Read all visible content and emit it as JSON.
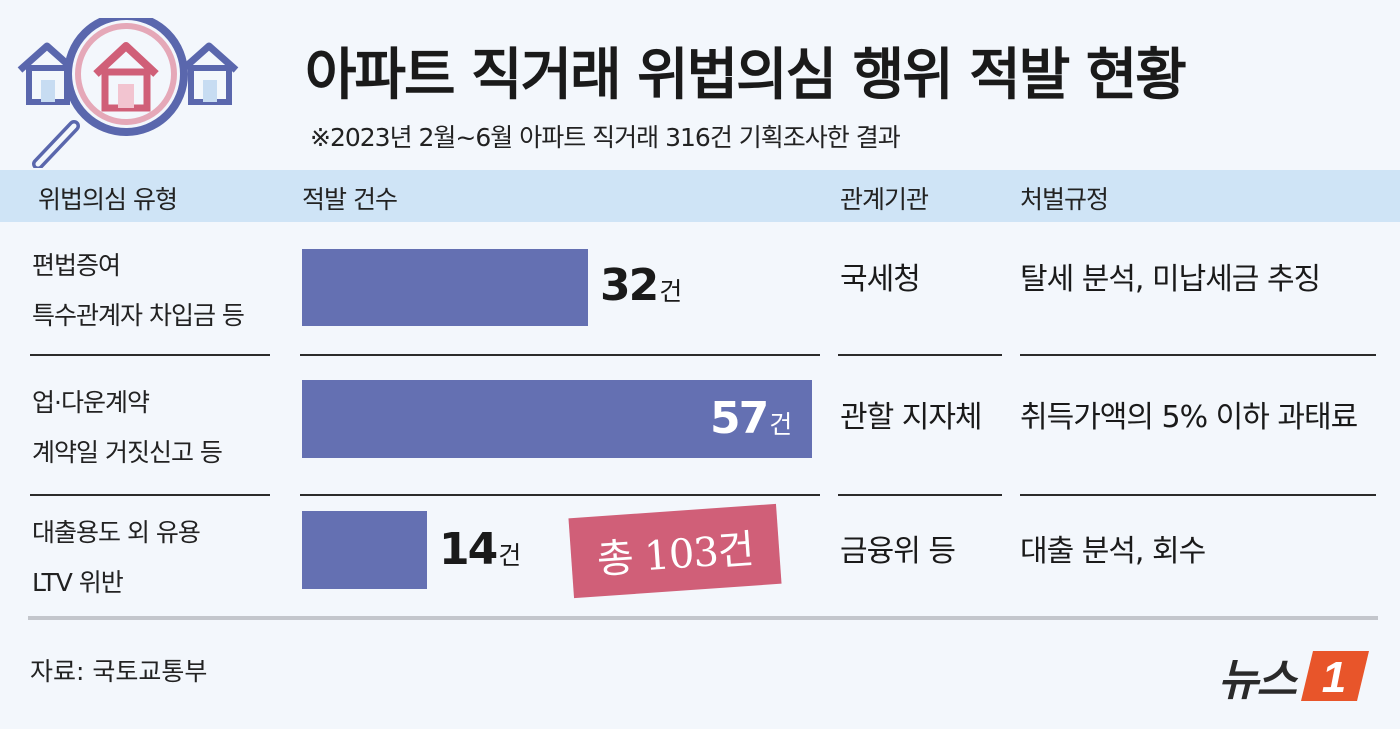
{
  "title": "아파트 직거래 위법의심 행위 적발 현황",
  "subtitle": "※2023년 2월~6월  아파트 직거래 316건 기획조사한 결과",
  "headers": {
    "type": "위법의심 유형",
    "count": "적발 건수",
    "agency": "관계기관",
    "penalty": "처벌규정"
  },
  "rows": [
    {
      "line1": "편법증여",
      "line2": "특수관계자 차입금 등",
      "value_label": "32",
      "unit": "건",
      "agency": "국세청",
      "penalty": "탈세 분석, 미납세금 추징"
    },
    {
      "line1": "업·다운계약",
      "line2": "계약일 거짓신고 등",
      "value_label": "57",
      "unit": "건",
      "agency": "관할 지자체",
      "penalty": "취득가액의 5% 이하 과태료"
    },
    {
      "line1": "대출용도 외 유용",
      "line2": "LTV 위반",
      "value_label": "14",
      "unit": "건",
      "agency": "금융위 등",
      "penalty": "대출 분석, 회수"
    }
  ],
  "total": "총 103건",
  "source": "자료: 국토교통부",
  "logo": {
    "text": "뉴스",
    "mark": "1"
  },
  "colors": {
    "bar": "#6470b2",
    "header_band": "#cfe4f6",
    "stamp": "#d05f78",
    "logo_accent": "#e8552a"
  },
  "icons": [
    "house-icon",
    "magnifier-icon"
  ],
  "chart_data": {
    "type": "bar",
    "orientation": "horizontal",
    "categories": [
      "편법증여 / 특수관계자 차입금 등",
      "업·다운계약 / 계약일 거짓신고 등",
      "대출용도 외 유용 / LTV 위반"
    ],
    "values": [
      32,
      57,
      14
    ],
    "unit": "건",
    "title": "아파트 직거래 위법의심 행위 적발 현황",
    "subtitle": "※2023년 2월~6월  아파트 직거래 316건 기획조사한 결과",
    "xlabel": "",
    "ylabel": "",
    "xlim": [
      0,
      57
    ],
    "grid": false,
    "legend": "none",
    "annotations": [
      "총 103건"
    ]
  }
}
